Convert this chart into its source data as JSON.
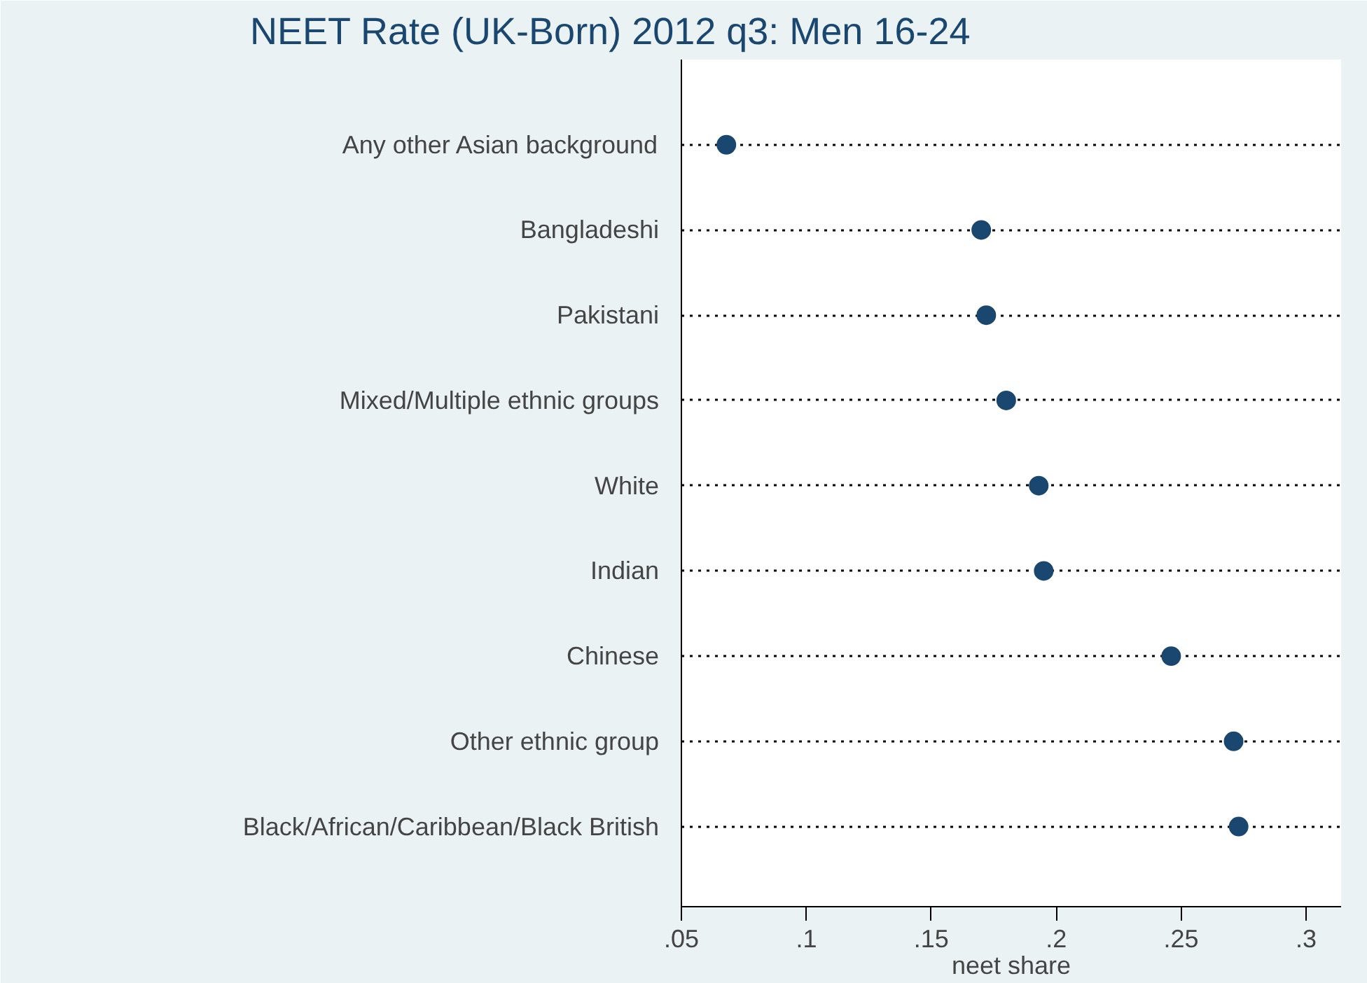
{
  "chart_data": {
    "type": "scatter",
    "orientation": "horizontal",
    "title": "NEET Rate (UK-Born) 2012 q3: Men 16-24",
    "xlabel": "neet share",
    "categories": [
      "Any other Asian background",
      "Bangladeshi",
      "Pakistani",
      "Mixed/Multiple ethnic groups",
      "White",
      "Indian",
      "Chinese",
      "Other ethnic group",
      "Black/African/Caribbean/Black British"
    ],
    "series": [
      {
        "color": "#1a476f",
        "values": [
          0.068,
          0.17,
          0.172,
          0.18,
          0.193,
          0.195,
          0.246,
          0.271,
          0.273
        ]
      }
    ],
    "xlim": [
      0.05,
      0.314
    ],
    "xticks": [
      {
        "value": 0.05,
        "label": ".05"
      },
      {
        "value": 0.1,
        "label": ".1"
      },
      {
        "value": 0.15,
        "label": ".15"
      },
      {
        "value": 0.2,
        "label": ".2"
      },
      {
        "value": 0.25,
        "label": ".25"
      },
      {
        "value": 0.3,
        "label": ".3"
      }
    ],
    "grid": "y",
    "line_style": "dotted",
    "marker": "circle"
  }
}
